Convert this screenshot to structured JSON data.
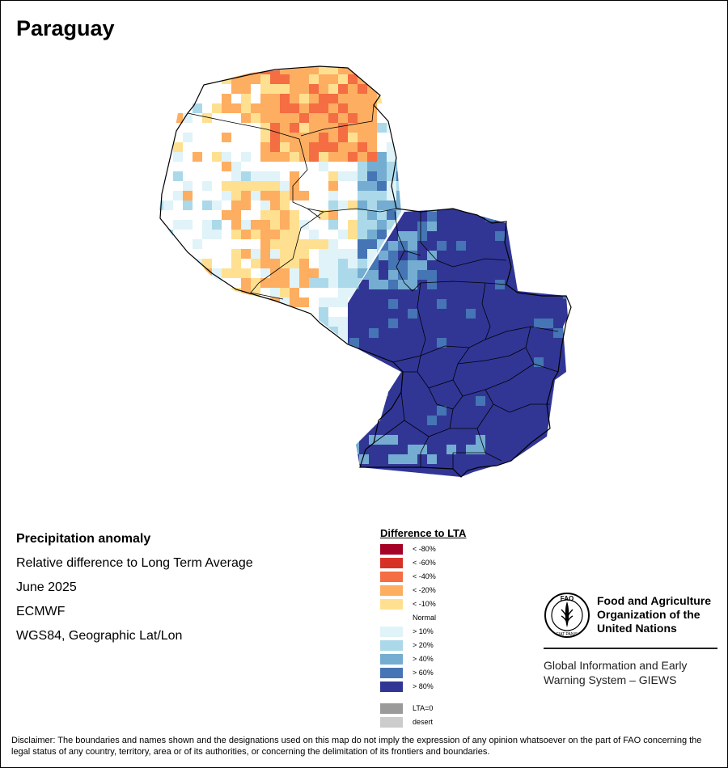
{
  "title": "Paraguay",
  "info": {
    "heading": "Precipitation anomaly",
    "subtitle": "Relative difference to Long Term Average",
    "period": "June 2025",
    "source": "ECMWF",
    "projection": "WGS84, Geographic Lat/Lon"
  },
  "legend": {
    "title": "Difference to LTA",
    "items": [
      {
        "label": "< -80%",
        "color": "#a50026"
      },
      {
        "label": "< -60%",
        "color": "#d73027"
      },
      {
        "label": "< -40%",
        "color": "#f46d43"
      },
      {
        "label": "< -20%",
        "color": "#fdae61"
      },
      {
        "label": "< -10%",
        "color": "#fee090"
      },
      {
        "label": "Normal",
        "color": "#ffffff"
      },
      {
        "label": "> 10%",
        "color": "#e0f3f8"
      },
      {
        "label": "> 20%",
        "color": "#abd9e9"
      },
      {
        "label": "> 40%",
        "color": "#74add1"
      },
      {
        "label": "> 60%",
        "color": "#4575b4"
      },
      {
        "label": "> 80%",
        "color": "#313695"
      }
    ],
    "extra": [
      {
        "label": "LTA=0",
        "color": "#9a9a9a"
      },
      {
        "label": "desert",
        "color": "#cccccc"
      }
    ]
  },
  "fao": {
    "name_line1": "Food and Agriculture",
    "name_line2": "Organization of the",
    "name_line3": "United Nations",
    "giews_line1": "Global Information and Early",
    "giews_line2": "Warning System – GIEWS",
    "logo_text": "FAO",
    "logo_motto": "FIAT PANIS"
  },
  "disclaimer": "Disclaimer: The boundaries and names shown and the designations used on this map do not imply the expression of any opinion whatsoever on the part of FAO concerning the legal status of any country, territory, area or of its authorities, or concerning the delimitation of its frontiers and boundaries."
}
